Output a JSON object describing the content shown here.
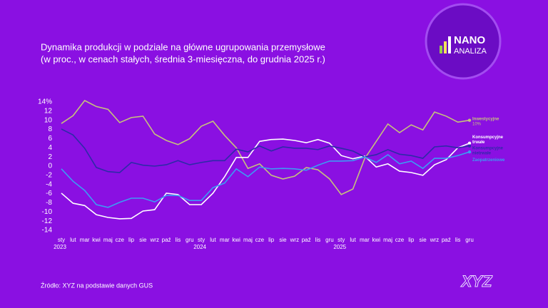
{
  "chart_data": {
    "type": "line",
    "title": "Dynamika produkcji w podziale na główne ugrupowania przemysłowe",
    "subtitle": "(w proc., w cenach stałych, średnia 3-miesięczna, do grudnia 2025 r.)",
    "source": "Źródło: XYZ na podstawie danych GUS",
    "logo": {
      "line1": "NANO",
      "line2": "ANALIZA"
    },
    "brand": "XYZ",
    "categories": [
      "sty",
      "lut",
      "mar",
      "kwi",
      "maj",
      "cze",
      "lip",
      "sie",
      "wrz",
      "paź",
      "lis",
      "gru",
      "sty",
      "lut",
      "mar",
      "kwi",
      "maj",
      "cze",
      "lip",
      "sie",
      "wrz",
      "paź",
      "lis",
      "gru",
      "sty",
      "lut",
      "mar",
      "kwi",
      "maj",
      "cze",
      "lip",
      "sie",
      "wrz",
      "paź",
      "lis",
      "gru"
    ],
    "years": [
      "2023",
      "2024",
      "2025"
    ],
    "ylim": [
      -14,
      14
    ],
    "yticks": [
      {
        "value": 14,
        "label": "14%"
      },
      12,
      10,
      8,
      6,
      4,
      2,
      0,
      -2,
      -4,
      -6,
      -8,
      -10,
      -12,
      -14
    ],
    "grid": false,
    "series": [
      {
        "name": "Inwestycyjne",
        "color": "#c6c27c",
        "values": [
          9.3,
          11,
          14.3,
          13,
          12.4,
          9.5,
          10.6,
          10.9,
          7,
          5.6,
          4.7,
          6,
          8.7,
          9.8,
          6.7,
          4,
          -0.5,
          0.5,
          -2,
          -2.8,
          -2.2,
          -0.3,
          -0.8,
          -2.8,
          -6.2,
          -5,
          1.6,
          5.4,
          9.2,
          7.3,
          9,
          7.9,
          11.8,
          10.9,
          9.6,
          10
        ],
        "value_labels": [
          null,
          null,
          null,
          null,
          null,
          null,
          null,
          null,
          null,
          null,
          null,
          null,
          null,
          null,
          null,
          null,
          null,
          null,
          null,
          null,
          null,
          null,
          null,
          null,
          null,
          null,
          null,
          null,
          null,
          null,
          null,
          null,
          null,
          null,
          null,
          "10%"
        ]
      },
      {
        "name": "Konsumpcyjne trwałe",
        "color": "#ffffff",
        "values": [
          -5.9,
          -8.1,
          -8.6,
          -10.6,
          -11.2,
          -11.5,
          -11.4,
          -9.8,
          -9.5,
          -5.9,
          -6.2,
          -8.4,
          -8.4,
          -5.9,
          -2.3,
          1.9,
          1.9,
          5.4,
          5.8,
          5.9,
          5.6,
          5.1,
          5.8,
          5,
          2.3,
          1.6,
          2.2,
          -0.2,
          0.5,
          -1.1,
          -1.4,
          -2,
          0.3,
          1.4,
          4,
          5
        ]
      },
      {
        "name": "Konsumpcyjne nietrwałe",
        "color": "#2e2aa8",
        "values": [
          8.1,
          6.8,
          3.9,
          -0.3,
          -1.2,
          -1.4,
          0.8,
          0.2,
          0,
          0.3,
          1.2,
          0.3,
          0.8,
          1.2,
          1.2,
          3.7,
          3.1,
          4.4,
          3.3,
          4.2,
          3.9,
          3.9,
          3.6,
          4.4,
          3.9,
          3.3,
          2,
          2.5,
          3.6,
          2.6,
          2.3,
          1.7,
          4.2,
          4.4,
          4,
          4.4
        ]
      },
      {
        "name": "Zaopatrzeniowe",
        "color": "#3c9cf4",
        "values": [
          -0.6,
          -3.3,
          -5.3,
          -8.4,
          -9,
          -7.9,
          -7,
          -7,
          -7.8,
          -6.4,
          -6.4,
          -7.5,
          -7.5,
          -4.7,
          -3.7,
          -0.6,
          -2.3,
          -0.2,
          -0.6,
          -0.5,
          -0.6,
          -0.9,
          0.2,
          1.1,
          1.1,
          1.2,
          2,
          0.8,
          2.5,
          0.5,
          1.1,
          -0.5,
          1.7,
          1.7,
          2.3,
          3.1
        ]
      }
    ]
  }
}
